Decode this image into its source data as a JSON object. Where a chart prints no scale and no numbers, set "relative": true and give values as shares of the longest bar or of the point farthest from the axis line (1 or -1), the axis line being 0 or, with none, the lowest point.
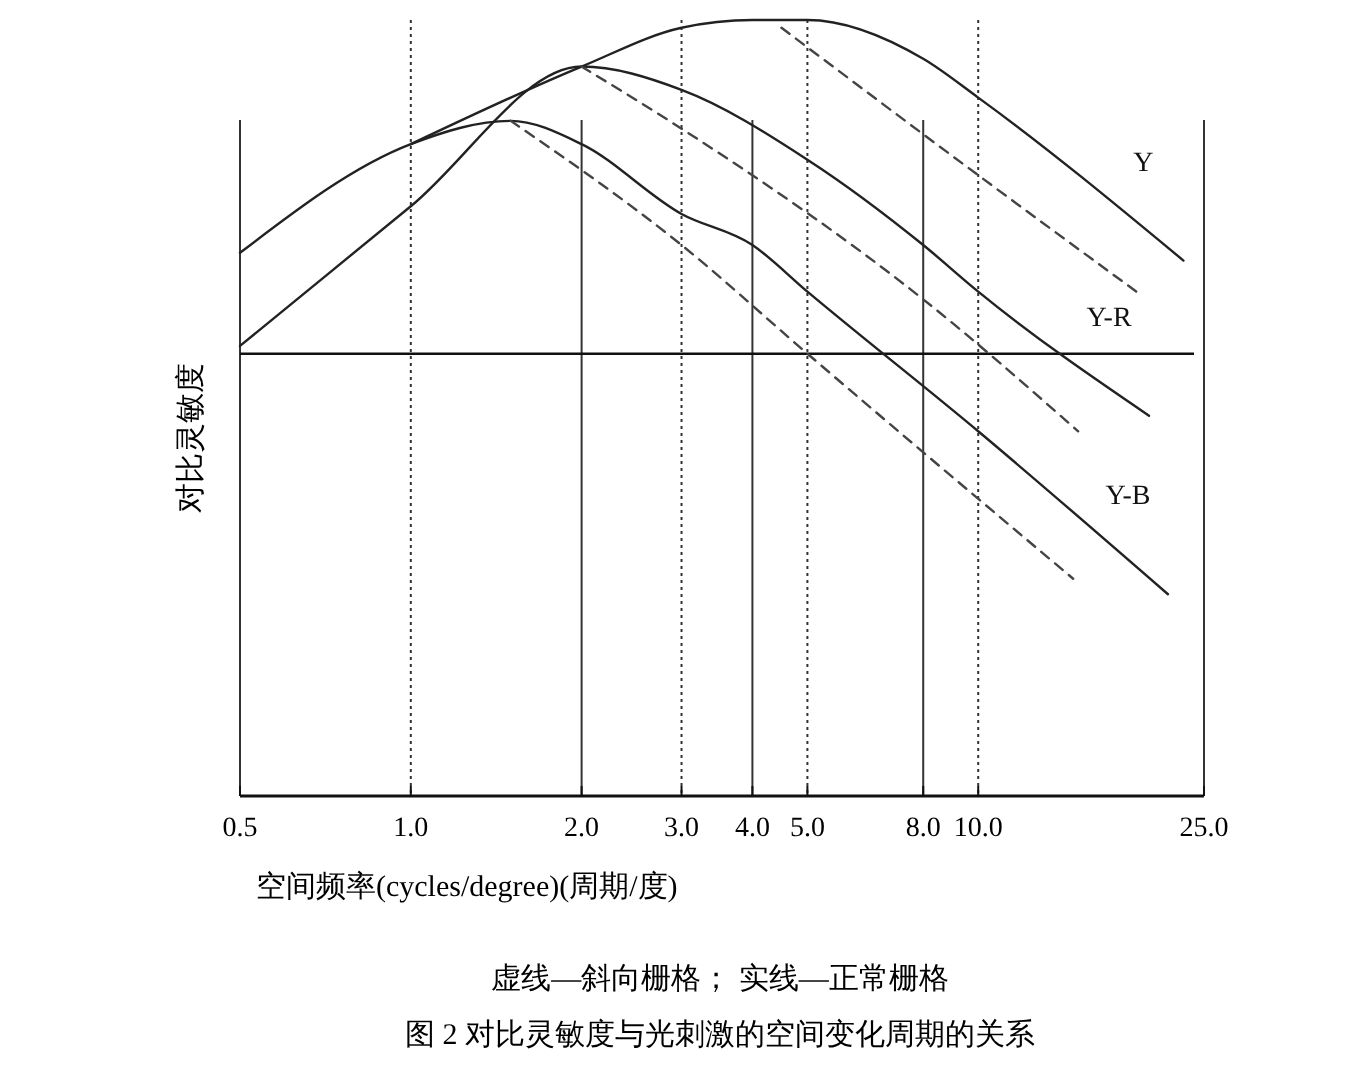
{
  "chart_data": {
    "type": "line",
    "relative": true,
    "log": "x",
    "grid": "x",
    "xlabel": "空间频率(cycles/degree)(周期/度)",
    "ylabel": "对比灵敏度",
    "annotations": [
      "虚线—斜向栅格；  实线—正常栅格",
      "图 2  对比灵敏度与光刺激的空间变化周期的关系"
    ],
    "xlim": [
      0.5,
      25
    ],
    "xticks": [
      {
        "value": 0.5,
        "label": "0.5"
      },
      {
        "value": 1,
        "label": "1.0"
      },
      {
        "value": 2,
        "label": "2.0"
      },
      {
        "value": 3,
        "label": "3.0"
      },
      {
        "value": 4,
        "label": "4.0"
      },
      {
        "value": 5,
        "label": "5.0"
      },
      {
        "value": 8,
        "label": "8.0"
      },
      {
        "value": 10,
        "label": "10.0"
      },
      {
        "value": 25,
        "label": "25.0"
      }
    ],
    "ref_lines": [
      {
        "axis": "y",
        "value": 0.57,
        "color": "#111111"
      }
    ],
    "series": [
      {
        "name": "Y",
        "color": "#222222",
        "line_style": "solid",
        "x": [
          1,
          2,
          3,
          4,
          5,
          8,
          10,
          23
        ],
        "values": [
          0.84,
          0.94,
          0.99,
          1.0,
          1.0,
          0.95,
          0.9,
          0.69
        ]
      },
      {
        "color": "#444444",
        "line_style": "dashed",
        "x": [
          4.5,
          10,
          19
        ],
        "values": [
          0.99,
          0.8,
          0.65
        ]
      },
      {
        "name": "Y-R",
        "color": "#222222",
        "line_style": "solid",
        "x": [
          0.5,
          1,
          2,
          3,
          5,
          8,
          10,
          20
        ],
        "values": [
          0.58,
          0.76,
          0.94,
          0.91,
          0.82,
          0.71,
          0.65,
          0.49
        ]
      },
      {
        "color": "#444444",
        "line_style": "dashed",
        "x": [
          2,
          3,
          8,
          15
        ],
        "values": [
          0.94,
          0.86,
          0.64,
          0.47
        ]
      },
      {
        "name": "Y-B",
        "color": "#222222",
        "line_style": "solid",
        "x": [
          0.5,
          1,
          1.5,
          2,
          3,
          4,
          5,
          10,
          21.6
        ],
        "values": [
          0.7,
          0.84,
          0.87,
          0.84,
          0.75,
          0.71,
          0.65,
          0.47,
          0.26
        ]
      },
      {
        "color": "#444444",
        "line_style": "dashed",
        "x": [
          1.5,
          3,
          5,
          14.7
        ],
        "values": [
          0.87,
          0.71,
          0.57,
          0.28
        ]
      }
    ]
  }
}
